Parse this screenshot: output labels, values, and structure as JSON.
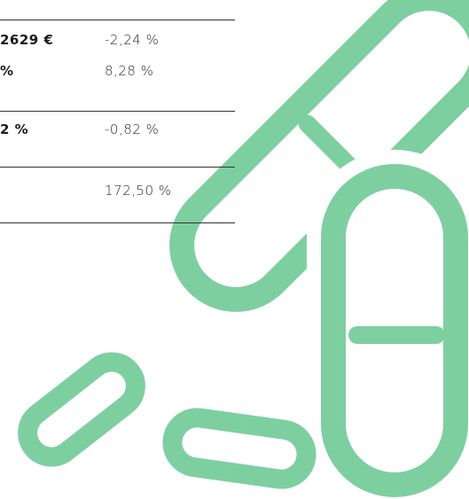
{
  "table": {
    "rows": [
      [
        "2629 €",
        "-2,24 %"
      ],
      [
        "%",
        "8,28 %"
      ],
      [
        "2 %",
        "-0,82 %"
      ],
      [
        "",
        "172,50 %"
      ]
    ]
  }
}
